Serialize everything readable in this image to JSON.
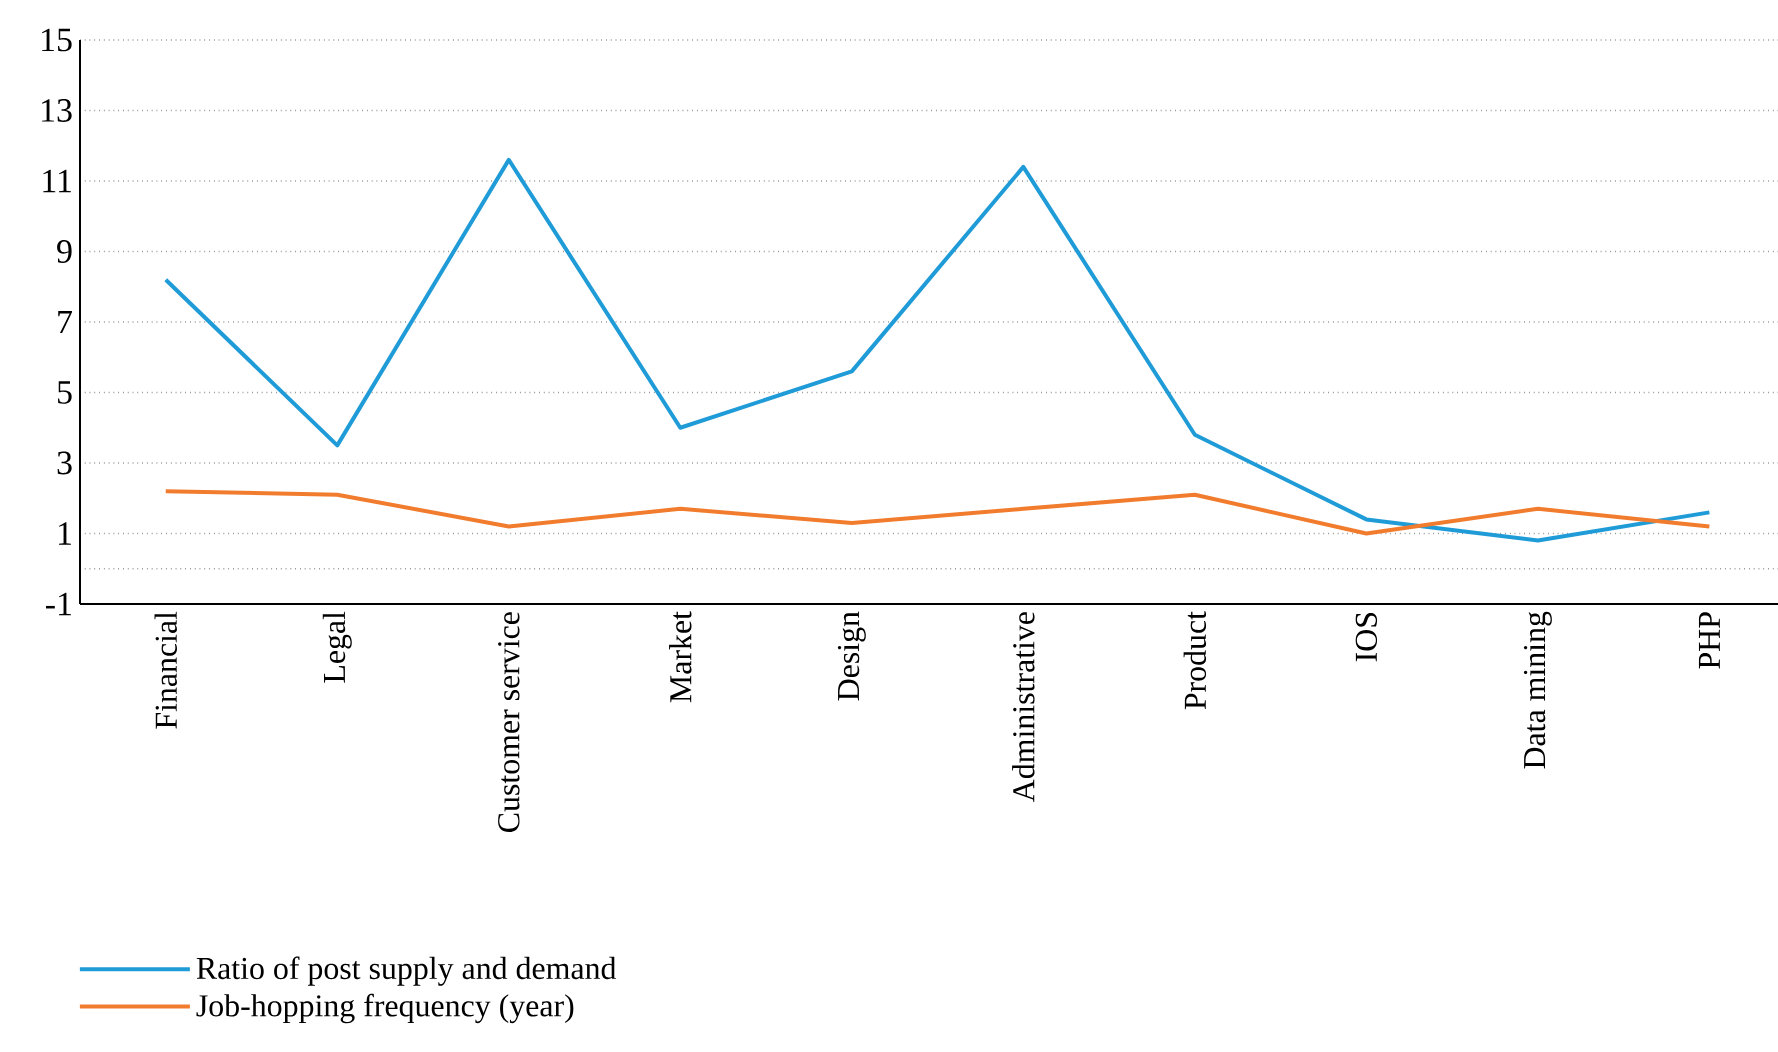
{
  "chart_data": {
    "type": "line",
    "categories": [
      "Financial",
      "Legal",
      "Customer service",
      "Market",
      "Design",
      "Administrative",
      "Product",
      "IOS",
      "Data mining",
      "PHP"
    ],
    "series": [
      {
        "name": "Ratio of post supply and demand",
        "color": "#1f9bd7",
        "values": [
          8.2,
          3.5,
          11.6,
          4.0,
          5.6,
          11.4,
          3.8,
          1.4,
          0.8,
          1.6
        ]
      },
      {
        "name": "Job-hopping frequency (year)",
        "color": "#f27c2e",
        "values": [
          2.2,
          2.1,
          1.2,
          1.7,
          1.3,
          1.7,
          2.1,
          1.0,
          1.7,
          1.2
        ]
      }
    ],
    "ylim": [
      -1,
      15
    ],
    "yticks": [
      -1,
      {
        "value": 0,
        "label": null
      },
      1,
      3,
      5,
      7,
      9,
      11,
      13,
      15
    ],
    "grid": "y",
    "legend": "bottom left",
    "marker": "none",
    "line_style": "solid"
  }
}
